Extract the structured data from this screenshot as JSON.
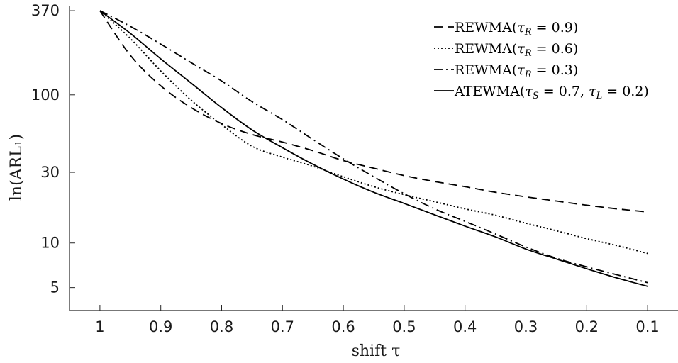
{
  "chart_data": {
    "type": "line",
    "xlabel": "shift τ",
    "ylabel": "ln(ARL₁)",
    "y_scale": "log",
    "x_axis_reversed": true,
    "xlim": [
      1.05,
      0.05
    ],
    "ylim": [
      3.5,
      400
    ],
    "x_ticks": [
      1,
      0.9,
      0.8,
      0.7,
      0.6,
      0.5,
      0.4,
      0.3,
      0.2,
      0.1
    ],
    "x_tick_labels": [
      "1",
      "0.9",
      "0.8",
      "0.7",
      "0.6",
      "0.5",
      "0.4",
      "0.3",
      "0.2",
      "0.1"
    ],
    "y_ticks": [
      5,
      10,
      30,
      100,
      370
    ],
    "y_tick_labels": [
      "5",
      "10",
      "30",
      "100",
      "370"
    ],
    "grid": false,
    "legend_position": "top-right",
    "x": [
      1.0,
      0.95,
      0.9,
      0.85,
      0.8,
      0.75,
      0.7,
      0.65,
      0.6,
      0.55,
      0.5,
      0.45,
      0.4,
      0.35,
      0.3,
      0.25,
      0.2,
      0.15,
      0.1
    ],
    "series": [
      {
        "name": "REWMA(τ_R = 0.9)",
        "line_style": "dashed",
        "values": [
          370,
          185,
          115,
          82,
          64,
          54,
          48,
          42,
          36,
          32,
          28.5,
          26,
          24,
          22,
          20.5,
          19.2,
          18,
          17,
          16.2
        ]
      },
      {
        "name": "REWMA(τ_R = 0.6)",
        "line_style": "dotted",
        "values": [
          370,
          240,
          145,
          92,
          63,
          45,
          38,
          33,
          28,
          24,
          21.2,
          19,
          17,
          15.4,
          13.6,
          12.1,
          10.7,
          9.6,
          8.5
        ]
      },
      {
        "name": "REWMA(τ_R = 0.3)",
        "line_style": "dashdot",
        "values": [
          370,
          290,
          220,
          165,
          124,
          90,
          68,
          50,
          37,
          28,
          21.5,
          17,
          14,
          11.5,
          9.4,
          7.9,
          6.9,
          6.1,
          5.4
        ]
      },
      {
        "name": "ATEWMA(τ_S = 0.7, τ_L = 0.2)",
        "line_style": "solid",
        "values": [
          370,
          260,
          175,
          120,
          82,
          58,
          44,
          34,
          27,
          22,
          18.5,
          15.5,
          13,
          11,
          9.1,
          7.8,
          6.7,
          5.8,
          5.1
        ]
      }
    ]
  }
}
